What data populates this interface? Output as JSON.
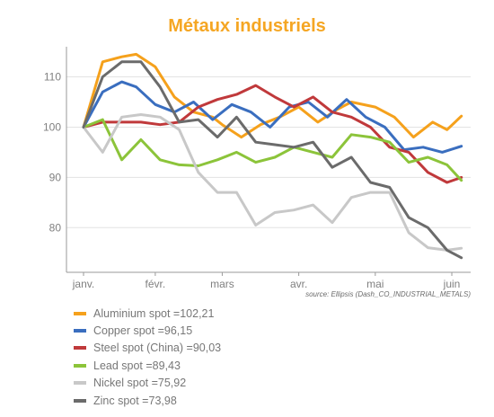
{
  "chart_data": {
    "type": "line",
    "title": "Métaux industriels",
    "source_note": "source: Ellipsis (Dash_CO_INDUSTRIAL_METALS)",
    "ylim": [
      72,
      116
    ],
    "yticks": [
      80,
      90,
      100,
      110
    ],
    "xlim": [
      0,
      40
    ],
    "xticks": [
      {
        "label": "janv.",
        "x": 0
      },
      {
        "label": "févr.",
        "x": 7.5
      },
      {
        "label": "mars",
        "x": 14.5
      },
      {
        "label": "avr.",
        "x": 22.5
      },
      {
        "label": "mai",
        "x": 30.5
      },
      {
        "label": "juin",
        "x": 38.5
      }
    ],
    "grid": true,
    "legend_position": "bottom-left",
    "series": [
      {
        "name": "Aluminium spot",
        "legend_label": "Aluminium spot =102,21",
        "color": "#f5a11c",
        "x": [
          0,
          2,
          4,
          5.5,
          7.5,
          9.5,
          11.5,
          13.5,
          14.5,
          16.5,
          18.5,
          20.5,
          22.5,
          24.5,
          26.5,
          28,
          30.5,
          32.5,
          34.5,
          36.5,
          38,
          39.5
        ],
        "values": [
          100,
          113,
          114,
          114.5,
          112,
          106,
          103,
          102,
          100.5,
          98,
          100.5,
          102,
          104,
          101,
          103.5,
          105,
          104,
          102,
          98,
          101,
          99.5,
          102.2
        ]
      },
      {
        "name": "Copper spot",
        "legend_label": "Copper spot =96,15",
        "color": "#3a6ebf",
        "x": [
          0,
          2,
          4,
          5.5,
          7.5,
          9.5,
          11.5,
          13.5,
          15.5,
          17.5,
          19.5,
          21.5,
          23.5,
          25.5,
          27.5,
          29.5,
          31.5,
          33.5,
          35.5,
          37.5,
          39.5
        ],
        "values": [
          100,
          107,
          109,
          108,
          104.5,
          103,
          105,
          101.5,
          104.5,
          103,
          100,
          104,
          105,
          102,
          105.5,
          102,
          100,
          95.5,
          96,
          95,
          96.2
        ]
      },
      {
        "name": "Steel spot (China)",
        "legend_label": "Steel spot (China) =90,03",
        "color": "#c0393b",
        "x": [
          0,
          2,
          4,
          6,
          8,
          10,
          12,
          14,
          16,
          18,
          20,
          22,
          24,
          26,
          28,
          30,
          32,
          34,
          36,
          38,
          39.5
        ],
        "values": [
          100,
          101,
          101,
          101,
          100.5,
          101,
          104,
          105.5,
          106.5,
          108.3,
          106,
          104,
          106,
          103,
          102,
          100,
          96,
          95,
          91,
          89,
          90.0
        ]
      },
      {
        "name": "Lead spot",
        "legend_label": "Lead spot =89,43",
        "color": "#8cc43a",
        "x": [
          0,
          2,
          4,
          6,
          8,
          10,
          12,
          14,
          16,
          18,
          20,
          22,
          24,
          26,
          28,
          30,
          32,
          34,
          36,
          38,
          39.5
        ],
        "values": [
          100,
          101.5,
          93.5,
          97.5,
          93.5,
          92.5,
          92.3,
          93.5,
          95,
          93,
          94,
          96,
          95,
          94,
          98.5,
          98,
          97,
          93,
          94,
          92.5,
          89.4
        ]
      },
      {
        "name": "Nickel spot",
        "legend_label": "Nickel spot =75,92",
        "color": "#c8c8c8",
        "x": [
          0,
          2,
          4,
          6,
          8,
          10,
          12,
          14,
          16,
          18,
          20,
          22,
          24,
          26,
          28,
          30,
          32,
          34,
          36,
          38,
          39.5
        ],
        "values": [
          100,
          95,
          102,
          102.5,
          102,
          99.5,
          91,
          87,
          87,
          80.5,
          83,
          83.5,
          84.5,
          81,
          86,
          87,
          87,
          79,
          76,
          75.5,
          75.9
        ]
      },
      {
        "name": "Zinc spot",
        "legend_label": "Zinc spot =73,98",
        "color": "#6b6b6b",
        "x": [
          0,
          2,
          4,
          6,
          8,
          10,
          12,
          14,
          16,
          18,
          20,
          22,
          24,
          26,
          28,
          30,
          32,
          34,
          36,
          38,
          39.5
        ],
        "values": [
          100,
          110,
          113,
          113,
          108,
          101,
          101.5,
          98,
          102,
          97,
          96.5,
          96,
          97,
          92,
          94,
          89,
          88,
          82,
          80,
          75.5,
          74.0
        ]
      }
    ]
  }
}
